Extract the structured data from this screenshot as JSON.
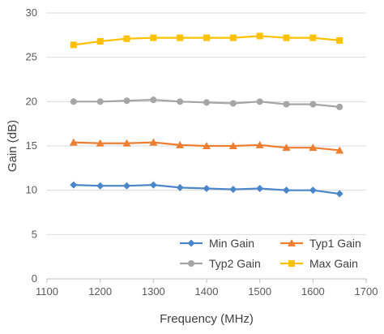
{
  "chart_data": {
    "type": "line",
    "xlabel": "Frequency (MHz)",
    "ylabel": "Gain (dB)",
    "xlim": [
      1100,
      1700
    ],
    "ylim": [
      0,
      30
    ],
    "xticks": [
      1100,
      1200,
      1300,
      1400,
      1500,
      1600,
      1700
    ],
    "yticks": [
      0,
      5,
      10,
      15,
      20,
      25,
      30
    ],
    "grid": "horizontal",
    "legend_position": "bottom-right",
    "x": [
      1150,
      1200,
      1250,
      1300,
      1350,
      1400,
      1450,
      1500,
      1550,
      1600,
      1650
    ],
    "series": [
      {
        "name": "Min Gain",
        "color": "#4a86c8",
        "marker": "diamond",
        "values": [
          10.6,
          10.5,
          10.5,
          10.6,
          10.3,
          10.2,
          10.1,
          10.2,
          10.0,
          10.0,
          9.6
        ]
      },
      {
        "name": "Typ1 Gain",
        "color": "#ed7d31",
        "marker": "triangle",
        "values": [
          15.4,
          15.3,
          15.3,
          15.4,
          15.1,
          15.0,
          15.0,
          15.1,
          14.8,
          14.8,
          14.5
        ]
      },
      {
        "name": "Typ2 Gain",
        "color": "#a5a5a5",
        "marker": "circle",
        "values": [
          20.0,
          20.0,
          20.1,
          20.2,
          20.0,
          19.9,
          19.8,
          20.0,
          19.7,
          19.7,
          19.4
        ]
      },
      {
        "name": "Max Gain",
        "color": "#ffc000",
        "marker": "square",
        "values": [
          26.4,
          26.8,
          27.1,
          27.2,
          27.2,
          27.2,
          27.2,
          27.4,
          27.2,
          27.2,
          26.9
        ]
      }
    ]
  }
}
